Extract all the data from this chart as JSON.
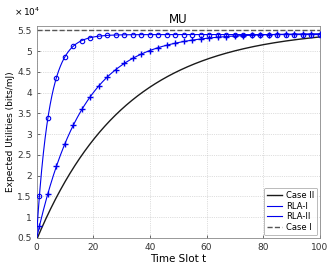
{
  "title": "MU",
  "xlabel": "Time Slot t",
  "ylabel": "Expected Utilities (bits/mJ)",
  "xlim": [
    0,
    100
  ],
  "ylim": [
    5000,
    56000
  ],
  "yticks": [
    5000,
    10000,
    15000,
    20000,
    25000,
    30000,
    35000,
    40000,
    45000,
    50000,
    55000
  ],
  "ytick_labels": [
    "0.5",
    "1",
    "1.5",
    "2",
    "2.5",
    "3",
    "3.5",
    "4",
    "4.5",
    "5",
    "5.5"
  ],
  "xticks": [
    0,
    20,
    40,
    60,
    80,
    100
  ],
  "case1_y": 55000,
  "case2_params": {
    "a": 51000,
    "b": 0.032,
    "c": 4500
  },
  "rla1_params": {
    "a": 49500,
    "b": 0.062,
    "c": 4800
  },
  "rla2_params": {
    "a": 48500,
    "b": 0.22,
    "c": 5500
  },
  "color_black": "#1a1a1a",
  "color_blue": "#0000EE",
  "color_dashed_gray": "#555555",
  "legend_labels": [
    "Case II",
    "RLA-I",
    "RLA-II",
    "Case I"
  ],
  "background_color": "#ffffff",
  "grid_color": "#c0c0c0",
  "marker_step": 3
}
